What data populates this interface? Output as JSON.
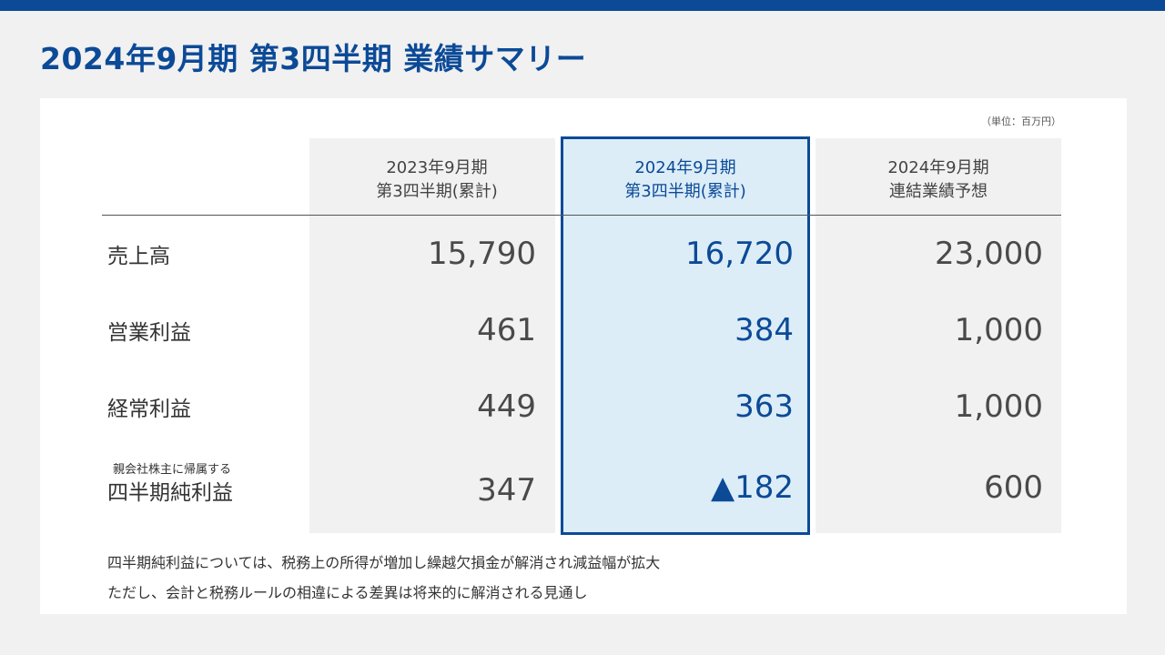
{
  "title": "2024年9月期 第3四半期 業績サマリー",
  "unit_note": "（単位：百万円）",
  "columns": [
    {
      "line1": "2023年9月期",
      "line2": "第3四半期(累計)"
    },
    {
      "line1": "2024年9月期",
      "line2": "第3四半期(累計)"
    },
    {
      "line1": "2024年9月期",
      "line2": "連結業績予想"
    }
  ],
  "rows": [
    {
      "label": "売上高",
      "sublabel": "",
      "values": [
        "15,790",
        "16,720",
        "23,000"
      ]
    },
    {
      "label": "営業利益",
      "sublabel": "",
      "values": [
        "461",
        "384",
        "1,000"
      ]
    },
    {
      "label": "経常利益",
      "sublabel": "",
      "values": [
        "449",
        "363",
        "1,000"
      ]
    },
    {
      "label": "四半期純利益",
      "sublabel": "親会社株主に帰属する",
      "values": [
        "347",
        "▲182",
        "600"
      ]
    }
  ],
  "notes": [
    "四半期純利益については、税務上の所得が増加し繰越欠損金が解消され減益幅が拡大",
    "ただし、会計と税務ルールの相違による差異は将来的に解消される見通し"
  ],
  "colors": {
    "brand": "#0c4a97",
    "highlight_fill": "#dcedf8",
    "page_bg": "#f1f1f1"
  }
}
